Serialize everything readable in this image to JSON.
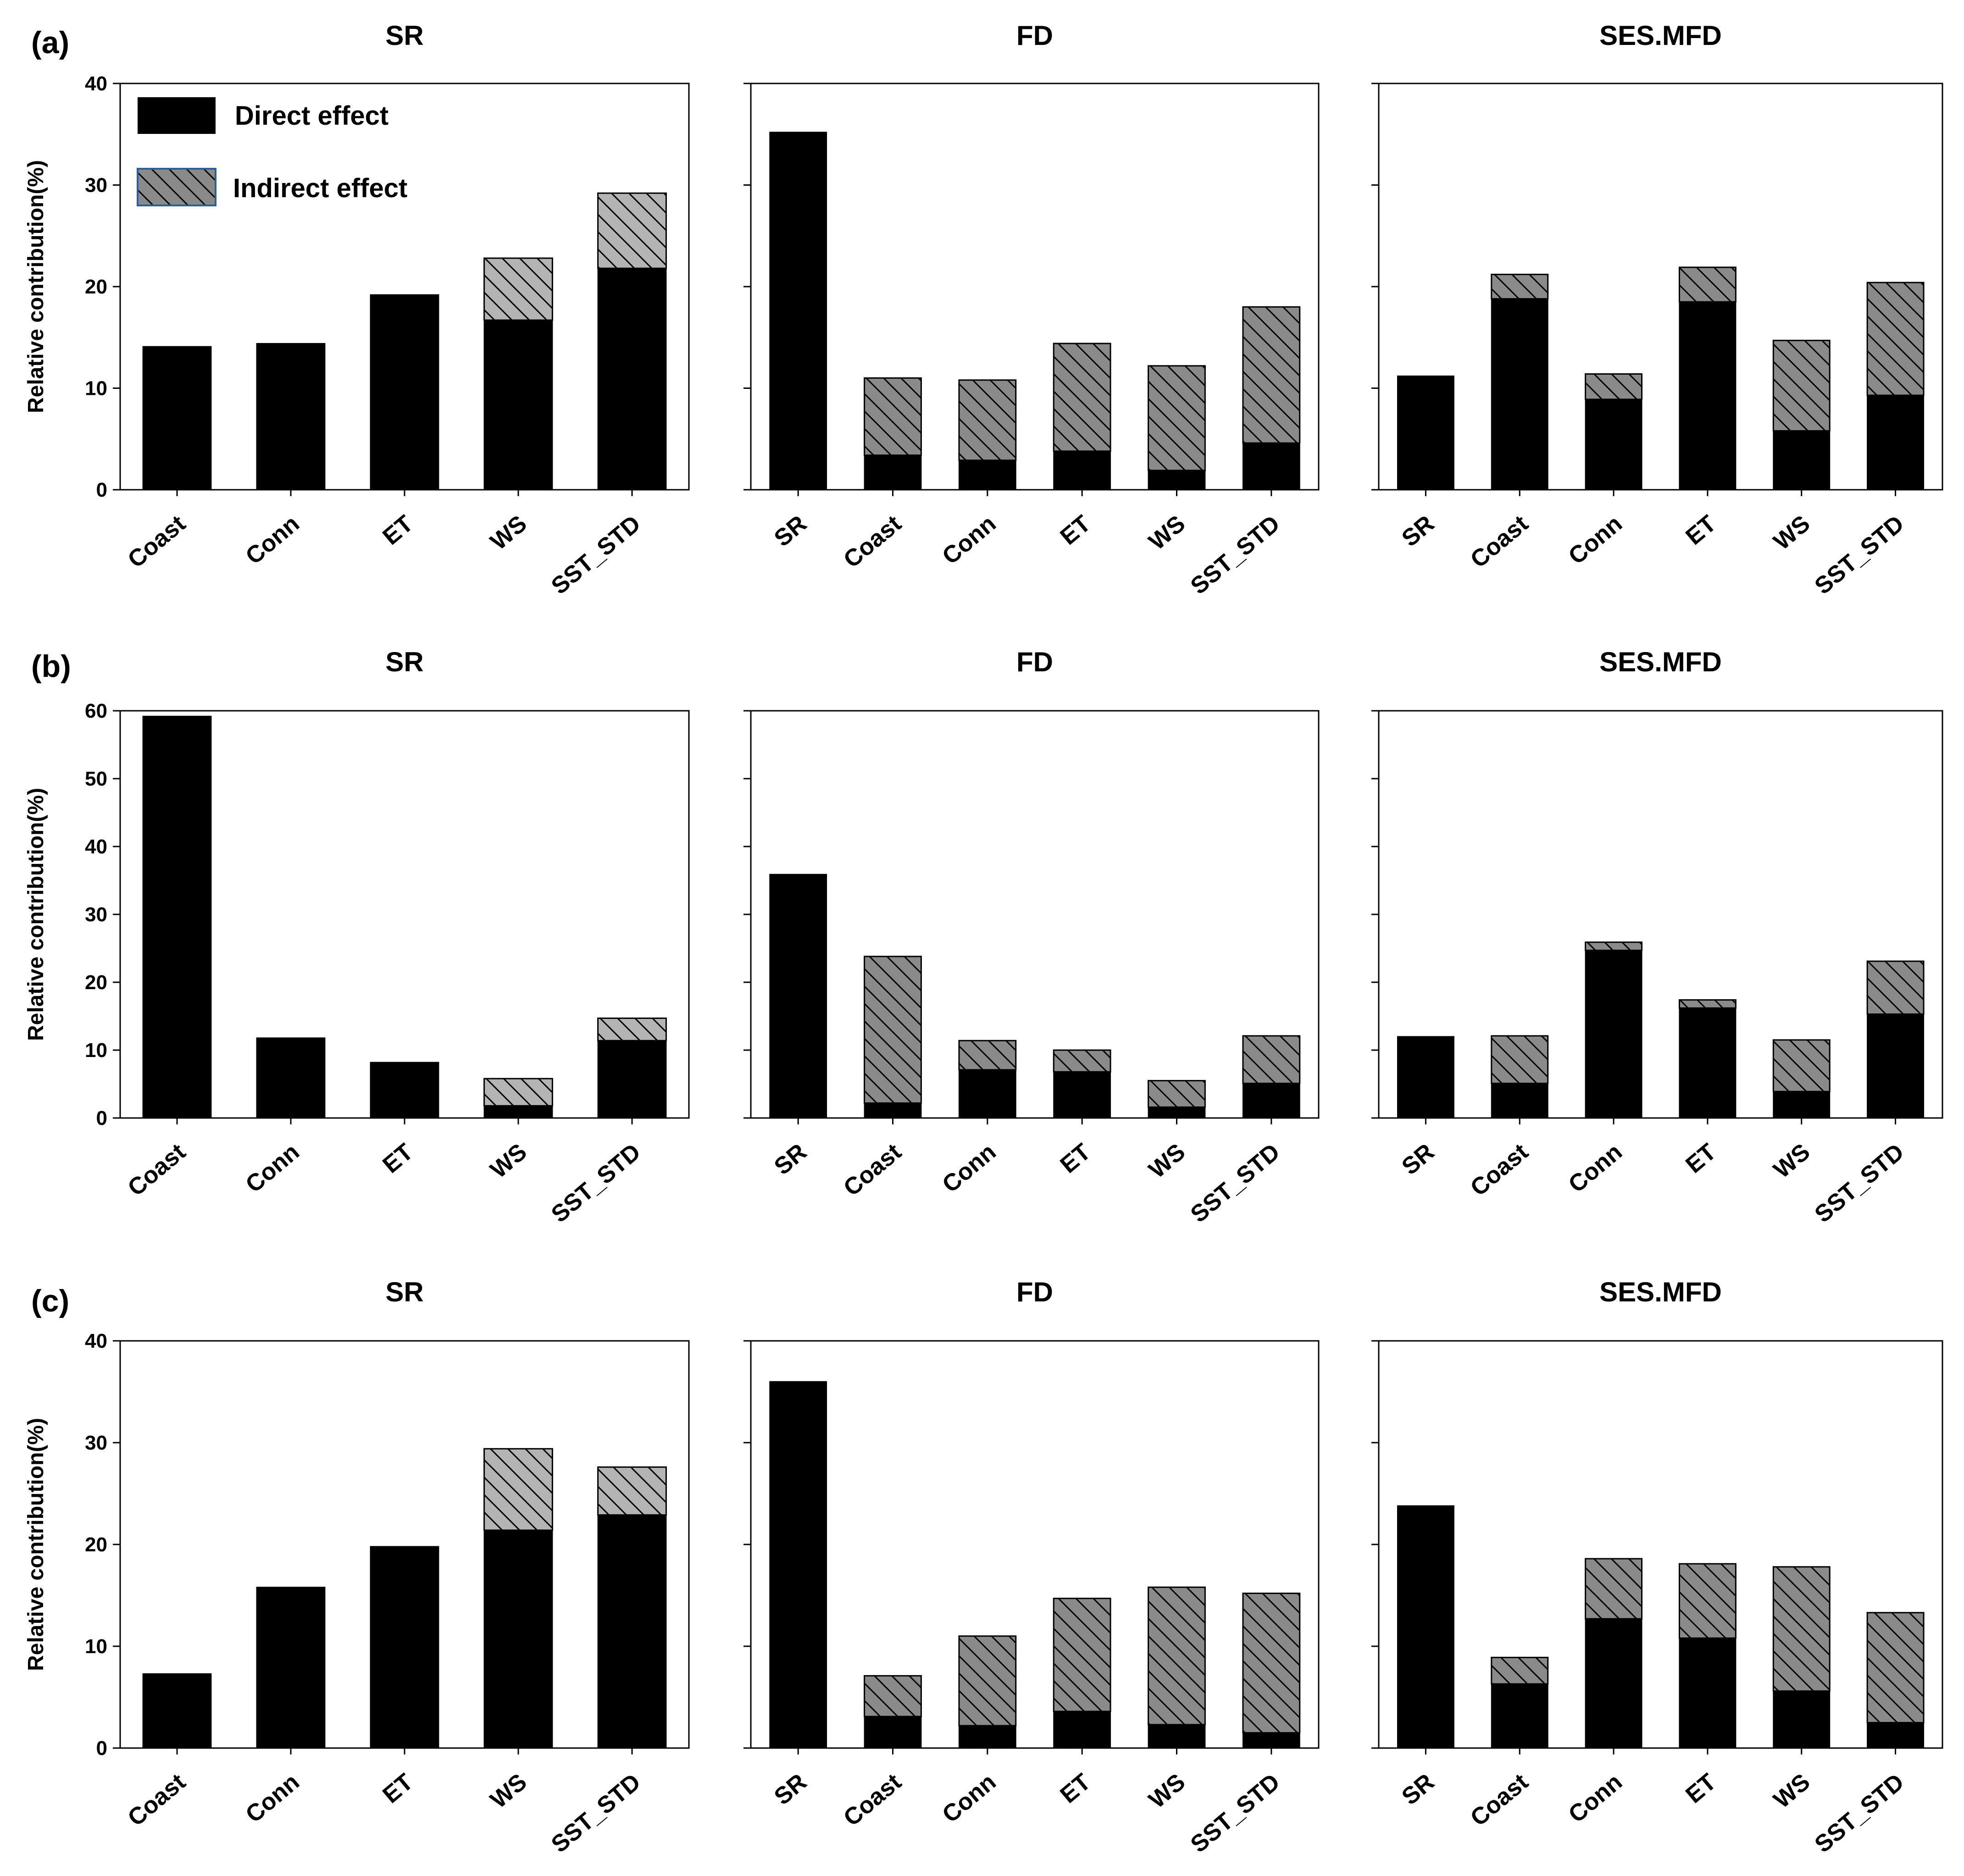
{
  "legend": {
    "direct_label": "Direct effect",
    "indirect_label": "Indirect effect"
  },
  "colors": {
    "direct": "#000000",
    "indirect_light": "#b4b4b4",
    "indirect_dark": "#8a8a8a",
    "legend_border": "#2d5f9e"
  },
  "rows": [
    {
      "label": "(a)"
    },
    {
      "label": "(b)"
    },
    {
      "label": "(c)"
    }
  ],
  "chart_data": [
    {
      "type": "bar",
      "stacked": true,
      "row": 0,
      "col": 0,
      "title": "SR",
      "ylabel": "Relative contribution(%)",
      "ylim": [
        0,
        40
      ],
      "yticks": [
        0,
        10,
        20,
        30,
        40
      ],
      "hatch_shade": "light",
      "categories": [
        "Coast",
        "Conn",
        "ET",
        "WS",
        "SST_STD"
      ],
      "series": [
        {
          "name": "Direct effect",
          "values": [
            14.1,
            14.4,
            19.2,
            16.7,
            21.8
          ]
        },
        {
          "name": "Indirect effect",
          "values": [
            0,
            0,
            0,
            6.1,
            7.4
          ]
        }
      ]
    },
    {
      "type": "bar",
      "stacked": true,
      "row": 0,
      "col": 1,
      "title": "FD",
      "ylim": [
        0,
        40
      ],
      "yticks": [
        0,
        10,
        20,
        30,
        40
      ],
      "hatch_shade": "dark",
      "categories": [
        "SR",
        "Coast",
        "Conn",
        "ET",
        "WS",
        "SST_STD"
      ],
      "series": [
        {
          "name": "Direct effect",
          "values": [
            35.2,
            3.4,
            2.9,
            3.8,
            1.9,
            4.6
          ]
        },
        {
          "name": "Indirect effect",
          "values": [
            0,
            7.6,
            7.9,
            10.6,
            10.3,
            13.4
          ]
        }
      ]
    },
    {
      "type": "bar",
      "stacked": true,
      "row": 0,
      "col": 2,
      "title": "SES.MFD",
      "ylim": [
        0,
        40
      ],
      "yticks": [
        0,
        10,
        20,
        30,
        40
      ],
      "hatch_shade": "dark",
      "categories": [
        "SR",
        "Coast",
        "Conn",
        "ET",
        "WS",
        "SST_STD"
      ],
      "series": [
        {
          "name": "Direct effect",
          "values": [
            11.2,
            18.8,
            8.9,
            18.5,
            5.8,
            9.3
          ]
        },
        {
          "name": "Indirect effect",
          "values": [
            0,
            2.4,
            2.5,
            3.4,
            8.9,
            11.1
          ]
        }
      ]
    },
    {
      "type": "bar",
      "stacked": true,
      "row": 1,
      "col": 0,
      "title": "SR",
      "ylabel": "Relative contribution(%)",
      "ylim": [
        0,
        60
      ],
      "yticks": [
        0,
        10,
        20,
        30,
        40,
        50,
        60
      ],
      "hatch_shade": "light",
      "categories": [
        "Coast",
        "Conn",
        "ET",
        "WS",
        "SST_STD"
      ],
      "series": [
        {
          "name": "Direct effect",
          "values": [
            59.2,
            11.8,
            8.2,
            1.8,
            11.4
          ]
        },
        {
          "name": "Indirect effect",
          "values": [
            0,
            0,
            0,
            4.0,
            3.3
          ]
        }
      ]
    },
    {
      "type": "bar",
      "stacked": true,
      "row": 1,
      "col": 1,
      "title": "FD",
      "ylim": [
        0,
        60
      ],
      "yticks": [
        0,
        10,
        20,
        30,
        40,
        50,
        60
      ],
      "hatch_shade": "dark",
      "categories": [
        "SR",
        "Coast",
        "Conn",
        "ET",
        "WS",
        "SST_STD"
      ],
      "series": [
        {
          "name": "Direct effect",
          "values": [
            35.9,
            2.2,
            7.1,
            6.8,
            1.6,
            5.1
          ]
        },
        {
          "name": "Indirect effect",
          "values": [
            0,
            21.6,
            4.3,
            3.2,
            3.9,
            7.0
          ]
        }
      ]
    },
    {
      "type": "bar",
      "stacked": true,
      "row": 1,
      "col": 2,
      "title": "SES.MFD",
      "ylim": [
        0,
        60
      ],
      "yticks": [
        0,
        10,
        20,
        30,
        40,
        50,
        60
      ],
      "hatch_shade": "dark",
      "categories": [
        "SR",
        "Coast",
        "Conn",
        "ET",
        "WS",
        "SST_STD"
      ],
      "series": [
        {
          "name": "Direct effect",
          "values": [
            12.0,
            5.1,
            24.7,
            16.2,
            3.9,
            15.3
          ]
        },
        {
          "name": "Indirect effect",
          "values": [
            0,
            7.0,
            1.2,
            1.2,
            7.6,
            7.8
          ]
        }
      ]
    },
    {
      "type": "bar",
      "stacked": true,
      "row": 2,
      "col": 0,
      "title": "SR",
      "ylabel": "Relative contribution(%)",
      "ylim": [
        0,
        40
      ],
      "yticks": [
        0,
        10,
        20,
        30,
        40
      ],
      "hatch_shade": "light",
      "categories": [
        "Coast",
        "Conn",
        "ET",
        "WS",
        "SST_STD"
      ],
      "series": [
        {
          "name": "Direct effect",
          "values": [
            7.3,
            15.8,
            19.8,
            21.4,
            22.9
          ]
        },
        {
          "name": "Indirect effect",
          "values": [
            0,
            0,
            0,
            8.0,
            4.7
          ]
        }
      ]
    },
    {
      "type": "bar",
      "stacked": true,
      "row": 2,
      "col": 1,
      "title": "FD",
      "ylim": [
        0,
        40
      ],
      "yticks": [
        0,
        10,
        20,
        30,
        40
      ],
      "hatch_shade": "dark",
      "categories": [
        "SR",
        "Coast",
        "Conn",
        "ET",
        "WS",
        "SST_STD"
      ],
      "series": [
        {
          "name": "Direct effect",
          "values": [
            36.0,
            3.1,
            2.2,
            3.6,
            2.3,
            1.5
          ]
        },
        {
          "name": "Indirect effect",
          "values": [
            0,
            4.0,
            8.8,
            11.1,
            13.5,
            13.7
          ]
        }
      ]
    },
    {
      "type": "bar",
      "stacked": true,
      "row": 2,
      "col": 2,
      "title": "SES.MFD",
      "ylim": [
        0,
        40
      ],
      "yticks": [
        0,
        10,
        20,
        30,
        40
      ],
      "hatch_shade": "dark",
      "categories": [
        "SR",
        "Coast",
        "Conn",
        "ET",
        "WS",
        "SST_STD"
      ],
      "series": [
        {
          "name": "Direct effect",
          "values": [
            23.8,
            6.3,
            12.7,
            10.8,
            5.6,
            2.5
          ]
        },
        {
          "name": "Indirect effect",
          "values": [
            0,
            2.6,
            5.9,
            7.3,
            12.2,
            10.8
          ]
        }
      ]
    }
  ]
}
